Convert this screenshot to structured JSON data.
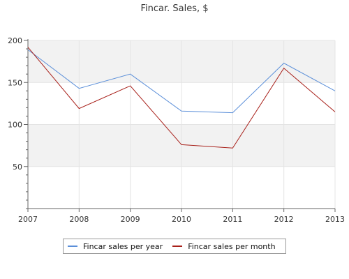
{
  "chart_data": {
    "type": "line",
    "title": "Fincar. Sales, $",
    "xlabel": "",
    "ylabel": "",
    "x": [
      "2007",
      "2008",
      "2009",
      "2010",
      "2011",
      "2012",
      "2013"
    ],
    "xlim": [
      2007,
      2013
    ],
    "ylim": [
      0,
      200
    ],
    "yticks": [
      50,
      100,
      150,
      200
    ],
    "grid": true,
    "legend_position": "bottom-center",
    "series": [
      {
        "name": "Fincar sales per year",
        "color": "#5b8fd9",
        "values": [
          189,
          143,
          160,
          116,
          114,
          173,
          140
        ]
      },
      {
        "name": "Fincar sales per month",
        "color": "#a8201a",
        "values": [
          192,
          119,
          146,
          76,
          72,
          167,
          115
        ]
      }
    ]
  }
}
